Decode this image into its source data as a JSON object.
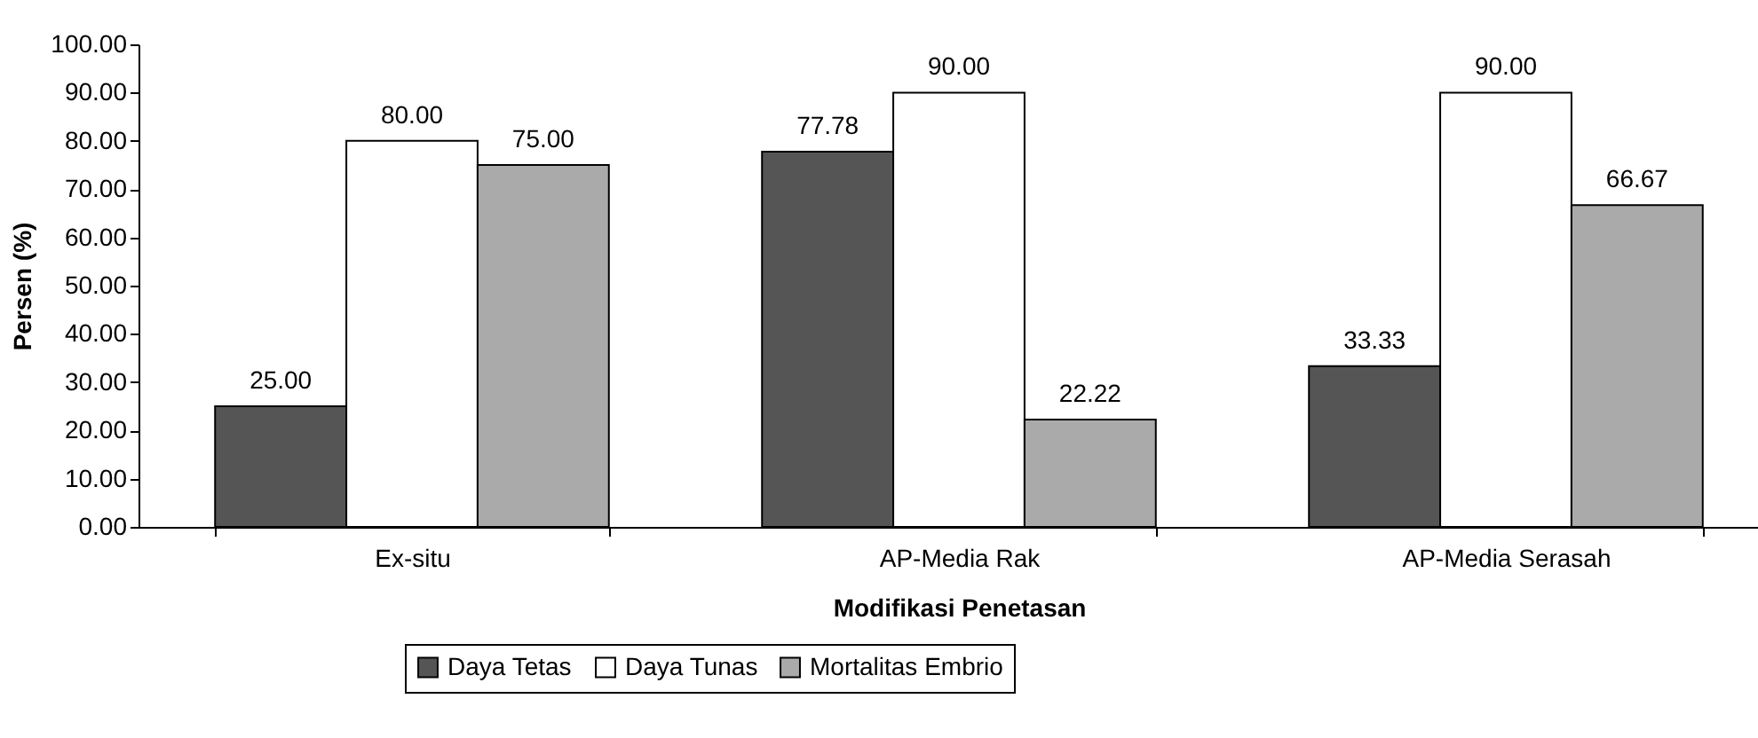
{
  "chart_data": {
    "type": "bar",
    "xlabel": "Modifikasi Penetasan",
    "ylabel": "Persen (%)",
    "categories": [
      "Ex-situ",
      "AP-Media Rak",
      "AP-Media Serasah"
    ],
    "series": [
      {
        "name": "Daya Tetas",
        "color": "#555555",
        "values": [
          25,
          77.78,
          33.33
        ],
        "value_labels": [
          "25.00",
          "77.78",
          "33.33"
        ]
      },
      {
        "name": "Daya Tunas",
        "color": "#ffffff",
        "values": [
          80,
          90,
          90
        ],
        "value_labels": [
          "80.00",
          "90.00",
          "90.00"
        ]
      },
      {
        "name": "Mortalitas Embrio",
        "color": "#aaaaaa",
        "values": [
          75,
          22.22,
          66.67
        ],
        "value_labels": [
          "75.00",
          "22.22",
          "66.67"
        ]
      }
    ],
    "ylim": [
      0,
      100
    ],
    "yticks": [
      {
        "value": 0,
        "label": "0.00"
      },
      {
        "value": 10,
        "label": "10.00"
      },
      {
        "value": 20,
        "label": "20.00"
      },
      {
        "value": 30,
        "label": "30.00"
      },
      {
        "value": 40,
        "label": "40.00"
      },
      {
        "value": 50,
        "label": "50.00"
      },
      {
        "value": 60,
        "label": "60.00"
      },
      {
        "value": 70,
        "label": "70.00"
      },
      {
        "value": 80,
        "label": "80.00"
      },
      {
        "value": 90,
        "label": "90.00"
      },
      {
        "value": 100,
        "label": "100.00"
      }
    ],
    "grid": false,
    "legend": "bottom"
  }
}
